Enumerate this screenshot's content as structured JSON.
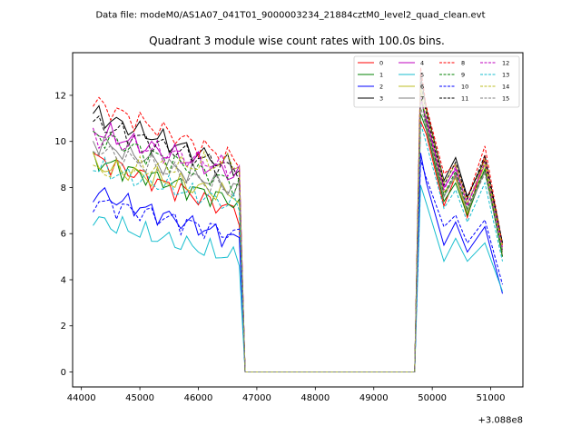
{
  "chart_data": {
    "type": "line",
    "suptitle": "Data file: modeM0/AS1A07_041T01_9000003234_21884cztM0_level2_quad_clean.evt",
    "title": "Quadrant 3 module wise count rates with 100.0s bins.",
    "xlabel": "",
    "ylabel": "",
    "x_offset_label": "+3.088e8",
    "xlim": [
      43850,
      51550
    ],
    "ylim": [
      -0.65,
      13.85
    ],
    "xticks": [
      44000,
      45000,
      46000,
      47000,
      48000,
      49000,
      50000,
      51000
    ],
    "xtick_labels": [
      "44000",
      "45000",
      "46000",
      "47000",
      "48000",
      "49000",
      "50000",
      "51000"
    ],
    "yticks": [
      0,
      2,
      4,
      6,
      8,
      10,
      12
    ],
    "ytick_labels": [
      "0",
      "2",
      "4",
      "6",
      "8",
      "10",
      "12"
    ],
    "grid": false,
    "legend_position": "top-right",
    "legend_columns": 4,
    "series": [
      {
        "name": "0",
        "color": "#ff0000",
        "dash": "solid",
        "seg1_start": 9.3,
        "seg1_end": 6.9,
        "seg2": [
          10.9,
          10.3,
          7.2,
          8.5,
          6.7,
          9.4,
          5.0
        ]
      },
      {
        "name": "1",
        "color": "#008000",
        "dash": "solid",
        "seg1_start": 9.2,
        "seg1_end": 7.3,
        "seg2": [
          11.2,
          10.5,
          7.4,
          8.2,
          6.8,
          8.8,
          5.0
        ]
      },
      {
        "name": "2",
        "color": "#0000ff",
        "dash": "solid",
        "seg1_start": 7.8,
        "seg1_end": 5.7,
        "seg2": [
          9.5,
          8.2,
          5.5,
          6.5,
          5.2,
          6.3,
          3.4
        ]
      },
      {
        "name": "3",
        "color": "#000000",
        "dash": "solid",
        "seg1_start": 11.2,
        "seg1_end": 8.8,
        "seg2": [
          12.9,
          11.4,
          8.3,
          9.3,
          7.6,
          9.2,
          5.6
        ]
      },
      {
        "name": "4",
        "color": "#bf00bf",
        "dash": "solid",
        "seg1_start": 10.5,
        "seg1_end": 8.5,
        "seg2": [
          11.8,
          11.0,
          8.0,
          8.8,
          7.3,
          9.0,
          5.4
        ]
      },
      {
        "name": "5",
        "color": "#17becf",
        "dash": "solid",
        "seg1_start": 6.6,
        "seg1_end": 4.9,
        "seg2": [
          8.1,
          7.3,
          4.8,
          5.8,
          4.8,
          5.6,
          3.5
        ]
      },
      {
        "name": "6",
        "color": "#bcbd22",
        "dash": "solid",
        "seg1_start": 9.0,
        "seg1_end": 7.6,
        "seg2": [
          12.3,
          10.8,
          7.8,
          8.4,
          6.9,
          9.0,
          5.2
        ]
      },
      {
        "name": "7",
        "color": "#7f7f7f",
        "dash": "solid",
        "seg1_start": 10.0,
        "seg1_end": 7.9,
        "seg2": [
          12.1,
          10.6,
          7.6,
          8.6,
          7.0,
          8.7,
          5.3
        ]
      },
      {
        "name": "8",
        "color": "#ff0000",
        "dash": "dashed",
        "seg1_start": 11.7,
        "seg1_end": 9.1,
        "seg2": [
          13.2,
          11.5,
          8.6,
          9.0,
          7.5,
          9.8,
          5.5
        ]
      },
      {
        "name": "9",
        "color": "#008000",
        "dash": "dashed",
        "seg1_start": 10.3,
        "seg1_end": 8.1,
        "seg2": [
          11.9,
          10.8,
          7.7,
          8.7,
          7.1,
          8.8,
          5.2
        ]
      },
      {
        "name": "10",
        "color": "#0000ff",
        "dash": "dashed",
        "seg1_start": 7.4,
        "seg1_end": 5.9,
        "seg2": [
          9.2,
          8.4,
          6.3,
          6.8,
          5.6,
          6.6,
          3.8
        ]
      },
      {
        "name": "11",
        "color": "#000000",
        "dash": "dashed",
        "seg1_start": 10.8,
        "seg1_end": 8.7,
        "seg2": [
          12.6,
          11.2,
          8.1,
          9.1,
          7.5,
          9.4,
          5.6
        ]
      },
      {
        "name": "12",
        "color": "#bf00bf",
        "dash": "dashed",
        "seg1_start": 10.2,
        "seg1_end": 8.8,
        "seg2": [
          12.0,
          10.9,
          7.9,
          8.9,
          7.2,
          9.1,
          5.3
        ]
      },
      {
        "name": "13",
        "color": "#17becf",
        "dash": "dashed",
        "seg1_start": 8.9,
        "seg1_end": 7.2,
        "seg2": [
          10.8,
          9.9,
          7.1,
          7.9,
          6.5,
          8.2,
          4.8
        ]
      },
      {
        "name": "14",
        "color": "#bcbd22",
        "dash": "dashed",
        "seg1_start": 8.7,
        "seg1_end": 9.1,
        "seg2": [
          12.4,
          11.3,
          8.2,
          9.0,
          7.3,
          9.2,
          5.4
        ]
      },
      {
        "name": "15",
        "color": "#7f7f7f",
        "dash": "dashed",
        "seg1_start": 9.7,
        "seg1_end": 7.8,
        "seg2": [
          11.5,
          10.6,
          7.6,
          8.5,
          7.0,
          8.6,
          5.2
        ]
      }
    ]
  }
}
